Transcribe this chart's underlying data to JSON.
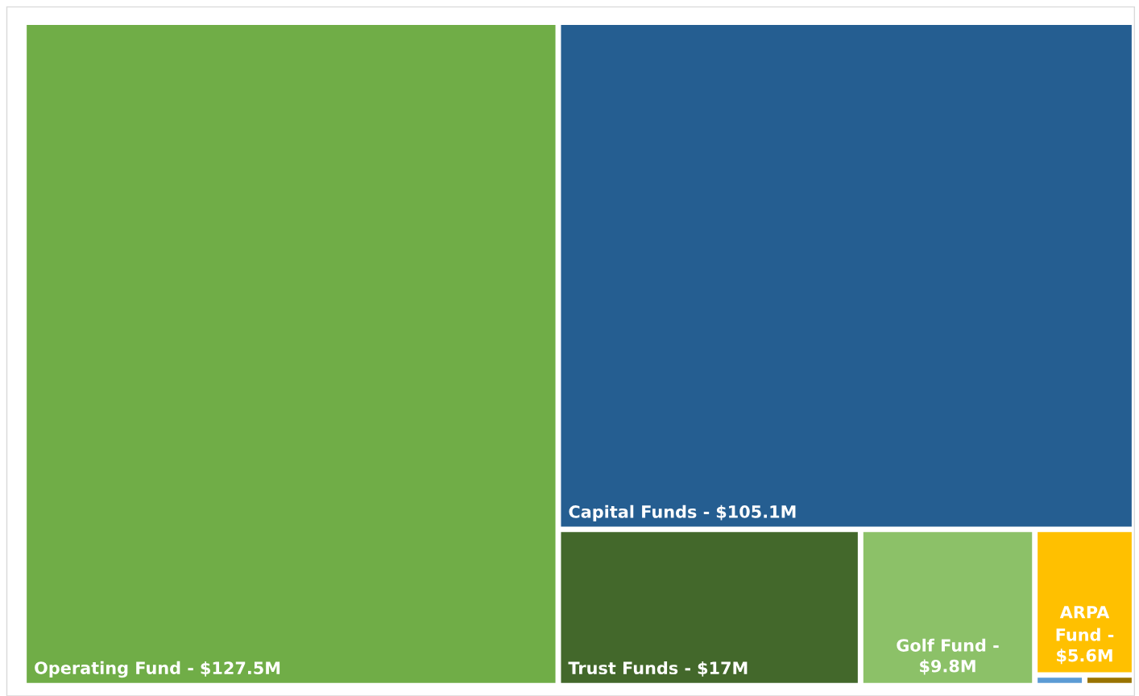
{
  "chart_data": {
    "type": "other",
    "categories": [
      "Operating Fund -",
      "Capital Funds -",
      "Trust Funds -",
      "Golf Fund -",
      "ARPA\nFund -",
      null,
      null
    ],
    "values": [
      127.5,
      105.1,
      17,
      9.8,
      5.6,
      null,
      null
    ],
    "value_labels": [
      "$127.5M",
      "$105.1M",
      "$17M",
      "$9.8M",
      "$5.6M",
      null,
      null
    ],
    "colors": [
      "#70ad47",
      "#255e91",
      "#43682b",
      "#8cc168",
      "#ffc000",
      "#5b9bd5",
      "#997300"
    ]
  }
}
